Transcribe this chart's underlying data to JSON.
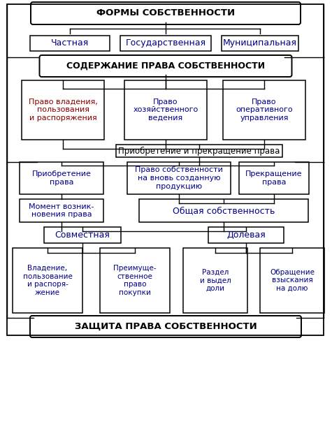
{
  "bg_color": "#ffffff",
  "title_top": "ФОРМЫ СОБСТВЕННОСТИ",
  "title_bottom": "ЗАЩИТА ПРАВА СОБСТВЕННОСТИ",
  "level1": [
    "Частная",
    "Государственная",
    "Муниципальная"
  ],
  "level2": "СОДЕРЖАНИЕ ПРАВА СОБСТВЕННОСТИ",
  "level3": [
    "Право владения,\nпользования\nи распоряжения",
    "Право\nхозяйственного\nведения",
    "Право\nоперативного\nуправления"
  ],
  "level4": "Приобретение и прекращение права",
  "level5": [
    "Приобретение\nправа",
    "Право собственности\nна вновь созданную\nпродукцию",
    "Прекращение\nправа"
  ],
  "level6a": "Момент возник-\nновения права",
  "level6b": "Общая собственность",
  "level7": [
    "Совместная",
    "Долевая"
  ],
  "level8": [
    "Владение,\nпользование\nи распоря-\nжение",
    "Преимуще-\nственное\nправо\nпокупки",
    "Раздел\nи выдел\nдоли",
    "Обращение\nвзыскания\nна долю"
  ],
  "c_black": "#000000",
  "c_blue": "#00008B",
  "c_red": "#8B0000"
}
